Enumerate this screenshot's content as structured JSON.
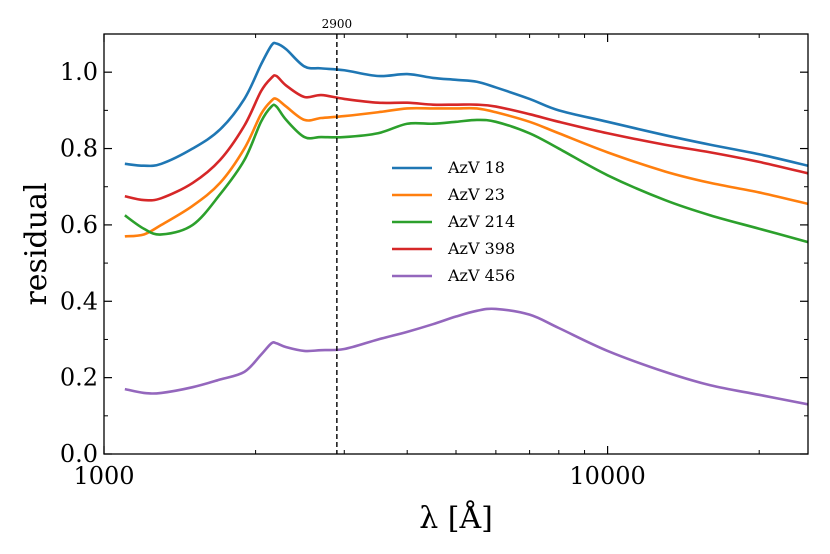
{
  "chart_data": {
    "type": "line",
    "xscale": "log",
    "xlim": [
      1000,
      25000
    ],
    "ylim": [
      0.0,
      1.1
    ],
    "xlabel": "λ [Å]",
    "ylabel": "residual",
    "x_ticks": [
      1000,
      10000
    ],
    "x_tick_labels": [
      "1000",
      "10000"
    ],
    "y_ticks": [
      0.0,
      0.2,
      0.4,
      0.6,
      0.8,
      1.0
    ],
    "y_tick_labels": [
      "0.0",
      "0.2",
      "0.4",
      "0.6",
      "0.8",
      "1.0"
    ],
    "vline": {
      "x": 2900,
      "label": "2900"
    },
    "legend_location": "center",
    "series": [
      {
        "name": "AzV 18",
        "color": "#1f77b4",
        "x": [
          1100,
          1200,
          1300,
          1500,
          1700,
          1900,
          2050,
          2150,
          2200,
          2300,
          2500,
          2700,
          3000,
          3500,
          4000,
          4500,
          5000,
          5500,
          6000,
          7000,
          8000,
          10000,
          13000,
          16000,
          20000,
          25000
        ],
        "y": [
          0.76,
          0.755,
          0.76,
          0.8,
          0.85,
          0.93,
          1.02,
          1.07,
          1.075,
          1.06,
          1.015,
          1.01,
          1.005,
          0.99,
          0.995,
          0.985,
          0.98,
          0.975,
          0.96,
          0.93,
          0.9,
          0.87,
          0.835,
          0.81,
          0.785,
          0.755
        ]
      },
      {
        "name": "AzV 23",
        "color": "#ff7f0e",
        "x": [
          1100,
          1200,
          1300,
          1500,
          1700,
          1900,
          2050,
          2150,
          2200,
          2300,
          2500,
          2700,
          3000,
          3500,
          4000,
          4500,
          5000,
          5500,
          6000,
          7000,
          8000,
          10000,
          13000,
          16000,
          20000,
          25000
        ],
        "y": [
          0.57,
          0.575,
          0.6,
          0.65,
          0.71,
          0.8,
          0.89,
          0.925,
          0.93,
          0.91,
          0.875,
          0.88,
          0.885,
          0.895,
          0.905,
          0.905,
          0.905,
          0.905,
          0.895,
          0.87,
          0.84,
          0.79,
          0.74,
          0.71,
          0.685,
          0.655
        ]
      },
      {
        "name": "AzV 214",
        "color": "#2ca02c",
        "x": [
          1100,
          1200,
          1300,
          1500,
          1700,
          1900,
          2050,
          2150,
          2200,
          2300,
          2500,
          2700,
          3000,
          3500,
          4000,
          4500,
          5000,
          5500,
          6000,
          7000,
          8000,
          10000,
          13000,
          16000,
          20000,
          25000
        ],
        "y": [
          0.625,
          0.59,
          0.575,
          0.6,
          0.68,
          0.77,
          0.87,
          0.91,
          0.91,
          0.875,
          0.83,
          0.83,
          0.83,
          0.84,
          0.865,
          0.865,
          0.87,
          0.875,
          0.87,
          0.84,
          0.8,
          0.73,
          0.665,
          0.625,
          0.59,
          0.555
        ]
      },
      {
        "name": "AzV 398",
        "color": "#d62728",
        "x": [
          1100,
          1200,
          1300,
          1500,
          1700,
          1900,
          2050,
          2150,
          2200,
          2300,
          2500,
          2700,
          3000,
          3500,
          4000,
          4500,
          5000,
          5500,
          6000,
          7000,
          8000,
          10000,
          13000,
          16000,
          20000,
          25000
        ],
        "y": [
          0.675,
          0.665,
          0.67,
          0.71,
          0.77,
          0.86,
          0.95,
          0.985,
          0.99,
          0.965,
          0.935,
          0.94,
          0.93,
          0.92,
          0.92,
          0.915,
          0.915,
          0.915,
          0.91,
          0.89,
          0.87,
          0.84,
          0.81,
          0.79,
          0.765,
          0.735
        ]
      },
      {
        "name": "AzV 456",
        "color": "#9467bd",
        "x": [
          1100,
          1200,
          1300,
          1500,
          1700,
          1900,
          2050,
          2150,
          2200,
          2300,
          2500,
          2700,
          3000,
          3500,
          4000,
          4500,
          5000,
          5500,
          6000,
          7000,
          8000,
          10000,
          13000,
          16000,
          20000,
          25000
        ],
        "y": [
          0.17,
          0.16,
          0.16,
          0.175,
          0.195,
          0.215,
          0.26,
          0.29,
          0.29,
          0.28,
          0.27,
          0.272,
          0.275,
          0.3,
          0.32,
          0.34,
          0.36,
          0.375,
          0.38,
          0.365,
          0.33,
          0.27,
          0.215,
          0.18,
          0.155,
          0.13
        ]
      }
    ]
  }
}
